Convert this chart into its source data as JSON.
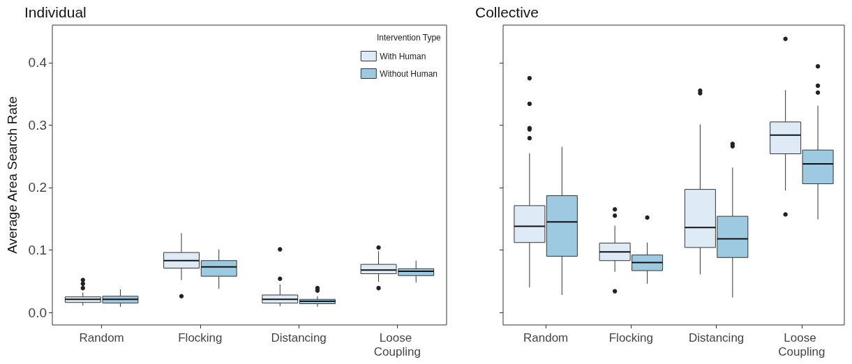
{
  "chart_data": [
    {
      "type": "box",
      "title": "Individual",
      "ylabel": "Average Area Search Rate",
      "legend_title": "Intervention Type",
      "legend": "top right",
      "grid": false,
      "categories": [
        "Random",
        "Flocking",
        "Distancing",
        "Loose Coupling"
      ],
      "ylim": [
        -0.02,
        0.46
      ],
      "yticks": [
        {
          "value": 0,
          "label": "0.0"
        },
        {
          "value": 0.1,
          "label": "0.1"
        },
        {
          "value": 0.2,
          "label": "0.2"
        },
        {
          "value": 0.3,
          "label": "0.3"
        },
        {
          "value": 0.4,
          "label": "0.4"
        }
      ],
      "series": [
        {
          "name": "With Human",
          "color": "#deebf7",
          "boxes": [
            {
              "low": 0.011,
              "q1": 0.016,
              "median": 0.021,
              "q3": 0.025,
              "high": 0.032,
              "outliers": [
                0.039,
                0.046,
                0.052
              ]
            },
            {
              "low": 0.052,
              "q1": 0.071,
              "median": 0.083,
              "q3": 0.096,
              "high": 0.127,
              "outliers": [
                0.026
              ]
            },
            {
              "low": 0.01,
              "q1": 0.015,
              "median": 0.021,
              "q3": 0.028,
              "high": 0.045,
              "outliers": [
                0.054,
                0.101
              ]
            },
            {
              "low": 0.049,
              "q1": 0.062,
              "median": 0.068,
              "q3": 0.077,
              "high": 0.098,
              "outliers": [
                0.039,
                0.104
              ]
            }
          ]
        },
        {
          "name": "Without Human",
          "color": "#9ecae1",
          "boxes": [
            {
              "low": 0.009,
              "q1": 0.015,
              "median": 0.021,
              "q3": 0.026,
              "high": 0.037
            },
            {
              "low": 0.038,
              "q1": 0.058,
              "median": 0.073,
              "q3": 0.083,
              "high": 0.101
            },
            {
              "low": 0.009,
              "q1": 0.014,
              "median": 0.018,
              "q3": 0.021,
              "high": 0.026,
              "outliers": [
                0.035,
                0.039
              ]
            },
            {
              "low": 0.048,
              "q1": 0.059,
              "median": 0.066,
              "q3": 0.07,
              "high": 0.083
            }
          ]
        }
      ]
    },
    {
      "type": "box",
      "title": "Collective",
      "legend": false,
      "grid": false,
      "tick_labels": "x",
      "categories": [
        "Random",
        "Flocking",
        "Distancing",
        "Loose Coupling"
      ],
      "ylim": [
        -0.02,
        0.46
      ],
      "yticks": [
        {
          "value": 0,
          "label": null
        },
        {
          "value": 0.1,
          "label": null
        },
        {
          "value": 0.2,
          "label": null
        },
        {
          "value": 0.3,
          "label": null
        },
        {
          "value": 0.4,
          "label": null
        }
      ],
      "series": [
        {
          "color": "#deebf7",
          "boxes": [
            {
              "low": 0.04,
              "q1": 0.112,
              "median": 0.138,
              "q3": 0.171,
              "high": 0.255,
              "outliers": [
                0.279,
                0.293,
                0.295,
                0.334,
                0.375
              ]
            },
            {
              "low": 0.065,
              "q1": 0.083,
              "median": 0.097,
              "q3": 0.111,
              "high": 0.139,
              "outliers": [
                0.034,
                0.155,
                0.165
              ]
            },
            {
              "low": 0.061,
              "q1": 0.104,
              "median": 0.136,
              "q3": 0.197,
              "high": 0.301,
              "outliers": [
                0.351,
                0.355
              ]
            },
            {
              "low": 0.195,
              "q1": 0.254,
              "median": 0.284,
              "q3": 0.305,
              "high": 0.356,
              "outliers": [
                0.157,
                0.438
              ]
            }
          ]
        },
        {
          "color": "#9ecae1",
          "boxes": [
            {
              "low": 0.028,
              "q1": 0.09,
              "median": 0.145,
              "q3": 0.187,
              "high": 0.265
            },
            {
              "low": 0.046,
              "q1": 0.067,
              "median": 0.08,
              "q3": 0.092,
              "high": 0.112,
              "outliers": [
                0.152
              ]
            },
            {
              "low": 0.024,
              "q1": 0.088,
              "median": 0.118,
              "q3": 0.154,
              "high": 0.232,
              "outliers": [
                0.266,
                0.27
              ]
            },
            {
              "low": 0.149,
              "q1": 0.206,
              "median": 0.238,
              "q3": 0.26,
              "high": 0.331,
              "outliers": [
                0.352,
                0.363,
                0.394
              ]
            }
          ]
        }
      ]
    }
  ]
}
